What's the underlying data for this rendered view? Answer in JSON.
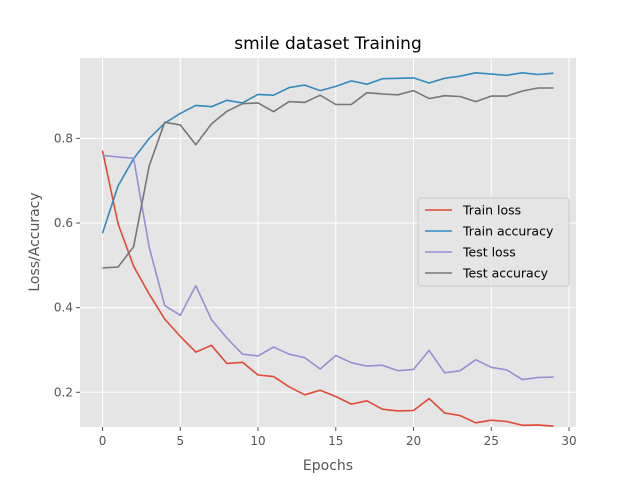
{
  "chart_data": {
    "type": "line",
    "title": "smile dataset Training",
    "xlabel": "Epochs",
    "ylabel": "Loss/Accuracy",
    "xlim": [
      -1.45,
      30.45
    ],
    "ylim": [
      0.118,
      0.99
    ],
    "xticks": [
      0,
      5,
      10,
      15,
      20,
      25,
      30
    ],
    "yticks": [
      0.2,
      0.4,
      0.6,
      0.8
    ],
    "ytick_labels": [
      "0.2",
      "0.4",
      "0.6",
      "0.8"
    ],
    "grid": true,
    "legend_position": "center-right",
    "x": [
      0,
      1,
      2,
      3,
      4,
      5,
      6,
      7,
      8,
      9,
      10,
      11,
      12,
      13,
      14,
      15,
      16,
      17,
      18,
      19,
      20,
      21,
      22,
      23,
      24,
      25,
      26,
      27,
      28,
      29
    ],
    "series": [
      {
        "name": "Train loss",
        "color": "#E24A33",
        "values": [
          0.771,
          0.598,
          0.498,
          0.432,
          0.373,
          0.332,
          0.295,
          0.311,
          0.268,
          0.271,
          0.241,
          0.237,
          0.213,
          0.194,
          0.205,
          0.19,
          0.172,
          0.18,
          0.16,
          0.156,
          0.157,
          0.185,
          0.151,
          0.145,
          0.128,
          0.134,
          0.131,
          0.122,
          0.123,
          0.12
        ]
      },
      {
        "name": "Train accuracy",
        "color": "#348ABD",
        "values": [
          0.576,
          0.688,
          0.752,
          0.8,
          0.836,
          0.859,
          0.878,
          0.875,
          0.89,
          0.884,
          0.904,
          0.902,
          0.92,
          0.926,
          0.913,
          0.923,
          0.936,
          0.928,
          0.941,
          0.942,
          0.943,
          0.931,
          0.942,
          0.947,
          0.955,
          0.952,
          0.949,
          0.955,
          0.951,
          0.954
        ]
      },
      {
        "name": "Test loss",
        "color": "#988ED5",
        "values": [
          0.76,
          0.756,
          0.753,
          0.543,
          0.405,
          0.382,
          0.452,
          0.372,
          0.328,
          0.29,
          0.286,
          0.307,
          0.29,
          0.282,
          0.255,
          0.287,
          0.27,
          0.262,
          0.264,
          0.251,
          0.254,
          0.299,
          0.246,
          0.251,
          0.277,
          0.259,
          0.253,
          0.23,
          0.235,
          0.236
        ]
      },
      {
        "name": "Test accuracy",
        "color": "#777777",
        "values": [
          0.494,
          0.496,
          0.544,
          0.735,
          0.838,
          0.832,
          0.785,
          0.834,
          0.864,
          0.882,
          0.884,
          0.863,
          0.887,
          0.885,
          0.902,
          0.88,
          0.88,
          0.908,
          0.905,
          0.903,
          0.913,
          0.894,
          0.901,
          0.899,
          0.887,
          0.9,
          0.9,
          0.912,
          0.919,
          0.919
        ]
      }
    ]
  }
}
